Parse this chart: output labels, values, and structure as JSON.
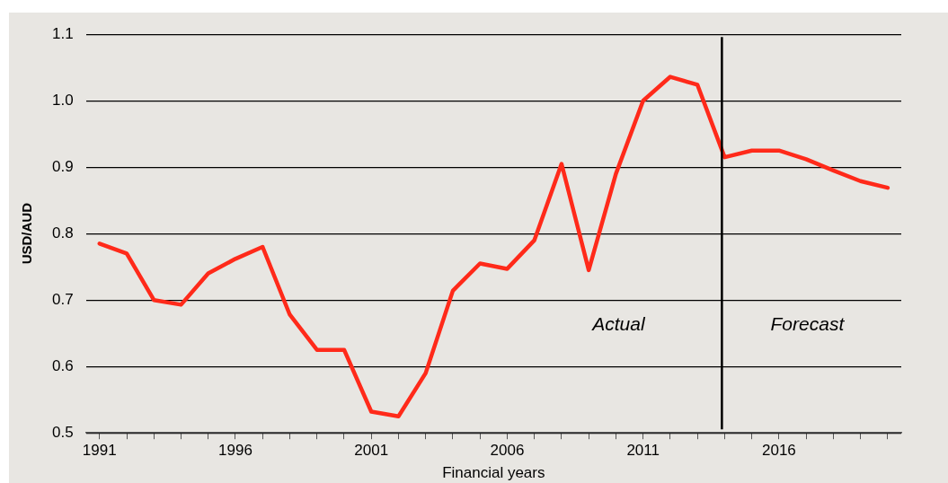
{
  "chart_data": {
    "type": "line",
    "xlabel": "Financial years",
    "ylabel": "USD/AUD",
    "x": [
      1991,
      1992,
      1993,
      1994,
      1995,
      1996,
      1997,
      1998,
      1999,
      2000,
      2001,
      2002,
      2003,
      2004,
      2005,
      2006,
      2007,
      2008,
      2009,
      2010,
      2011,
      2012,
      2013,
      2014,
      2015,
      2016,
      2017,
      2018,
      2019,
      2020
    ],
    "series": [
      {
        "color": "#ff2a1a",
        "values": [
          0.785,
          0.77,
          0.7,
          0.693,
          0.74,
          0.762,
          0.78,
          0.678,
          0.625,
          0.625,
          0.532,
          0.525,
          0.59,
          0.714,
          0.755,
          0.747,
          0.79,
          0.905,
          0.745,
          0.89,
          1.0,
          1.036,
          1.024,
          0.915,
          0.925,
          0.925,
          0.912,
          0.895,
          0.879,
          0.869
        ]
      }
    ],
    "xlim": [
      1990.5,
      2020.5
    ],
    "xticks": [
      1991,
      {
        "value": 1992,
        "label": null
      },
      {
        "value": 1993,
        "label": null
      },
      {
        "value": 1994,
        "label": null
      },
      {
        "value": 1995,
        "label": null
      },
      1996,
      {
        "value": 1997,
        "label": null
      },
      {
        "value": 1998,
        "label": null
      },
      {
        "value": 1999,
        "label": null
      },
      {
        "value": 2000,
        "label": null
      },
      2001,
      {
        "value": 2002,
        "label": null
      },
      {
        "value": 2003,
        "label": null
      },
      {
        "value": 2004,
        "label": null
      },
      {
        "value": 2005,
        "label": null
      },
      2006,
      {
        "value": 2007,
        "label": null
      },
      {
        "value": 2008,
        "label": null
      },
      {
        "value": 2009,
        "label": null
      },
      {
        "value": 2010,
        "label": null
      },
      2011,
      {
        "value": 2012,
        "label": null
      },
      {
        "value": 2013,
        "label": null
      },
      {
        "value": 2014,
        "label": null
      },
      {
        "value": 2015,
        "label": null
      },
      2016,
      {
        "value": 2017,
        "label": null
      },
      {
        "value": 2018,
        "label": null
      },
      {
        "value": 2019,
        "label": null
      },
      {
        "value": 2020,
        "label": null
      }
    ],
    "ylim": [
      0.5,
      1.1
    ],
    "yticks": [
      0.5,
      0.6,
      0.7,
      0.8,
      0.9,
      {
        "value": 1,
        "label": "1.0"
      },
      1.1
    ],
    "grid": "y",
    "legend": false,
    "marker": "none",
    "line_style": "solid",
    "ref_lines": [
      {
        "axis": "x",
        "value": 2013.9,
        "color": "#000000"
      }
    ],
    "annotations": [
      "Actual",
      "Forecast"
    ]
  }
}
